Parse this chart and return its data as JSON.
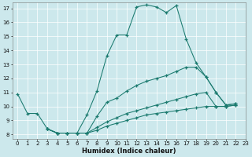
{
  "xlabel": "Humidex (Indice chaleur)",
  "xlim": [
    -0.5,
    23
  ],
  "ylim": [
    7.7,
    17.4
  ],
  "yticks": [
    8,
    9,
    10,
    11,
    12,
    13,
    14,
    15,
    16,
    17
  ],
  "xticks": [
    0,
    1,
    2,
    3,
    4,
    5,
    6,
    7,
    8,
    9,
    10,
    11,
    12,
    13,
    14,
    15,
    16,
    17,
    18,
    19,
    20,
    21,
    22,
    23
  ],
  "bg_color": "#cce8ec",
  "line_color": "#1a7a6e",
  "grid_color": "#ffffff",
  "curves": [
    {
      "x": [
        0,
        1,
        2,
        3,
        4,
        5,
        6,
        7,
        8,
        9,
        10,
        11,
        12,
        13,
        14,
        15,
        16,
        17,
        18,
        19,
        20,
        21,
        22
      ],
      "y": [
        10.9,
        9.5,
        9.5,
        8.4,
        8.1,
        8.1,
        8.1,
        9.4,
        11.1,
        13.6,
        15.1,
        15.1,
        17.1,
        17.25,
        17.1,
        16.7,
        17.2,
        14.8,
        13.1,
        12.1,
        11.0,
        10.1,
        10.2
      ]
    },
    {
      "x": [
        3,
        4,
        5,
        6,
        7,
        8,
        9,
        10,
        11,
        12,
        13,
        14,
        15,
        16,
        17,
        18,
        19,
        20,
        21,
        22
      ],
      "y": [
        8.4,
        8.1,
        8.1,
        8.1,
        8.1,
        9.3,
        10.3,
        10.6,
        11.1,
        11.5,
        11.8,
        12.0,
        12.2,
        12.5,
        12.8,
        12.8,
        12.1,
        11.0,
        10.1,
        10.2
      ]
    },
    {
      "x": [
        3,
        4,
        5,
        6,
        7,
        8,
        9,
        10,
        11,
        12,
        13,
        14,
        15,
        16,
        17,
        18,
        19,
        20,
        21,
        22
      ],
      "y": [
        8.4,
        8.1,
        8.1,
        8.1,
        8.1,
        8.5,
        8.9,
        9.2,
        9.5,
        9.7,
        9.9,
        10.1,
        10.3,
        10.5,
        10.7,
        10.9,
        11.0,
        10.0,
        10.0,
        10.1
      ]
    },
    {
      "x": [
        3,
        4,
        5,
        6,
        7,
        8,
        9,
        10,
        11,
        12,
        13,
        14,
        15,
        16,
        17,
        18,
        19,
        20,
        21,
        22
      ],
      "y": [
        8.4,
        8.1,
        8.1,
        8.1,
        8.1,
        8.3,
        8.6,
        8.8,
        9.0,
        9.2,
        9.4,
        9.5,
        9.6,
        9.7,
        9.8,
        9.9,
        10.0,
        10.0,
        10.0,
        10.1
      ]
    }
  ]
}
